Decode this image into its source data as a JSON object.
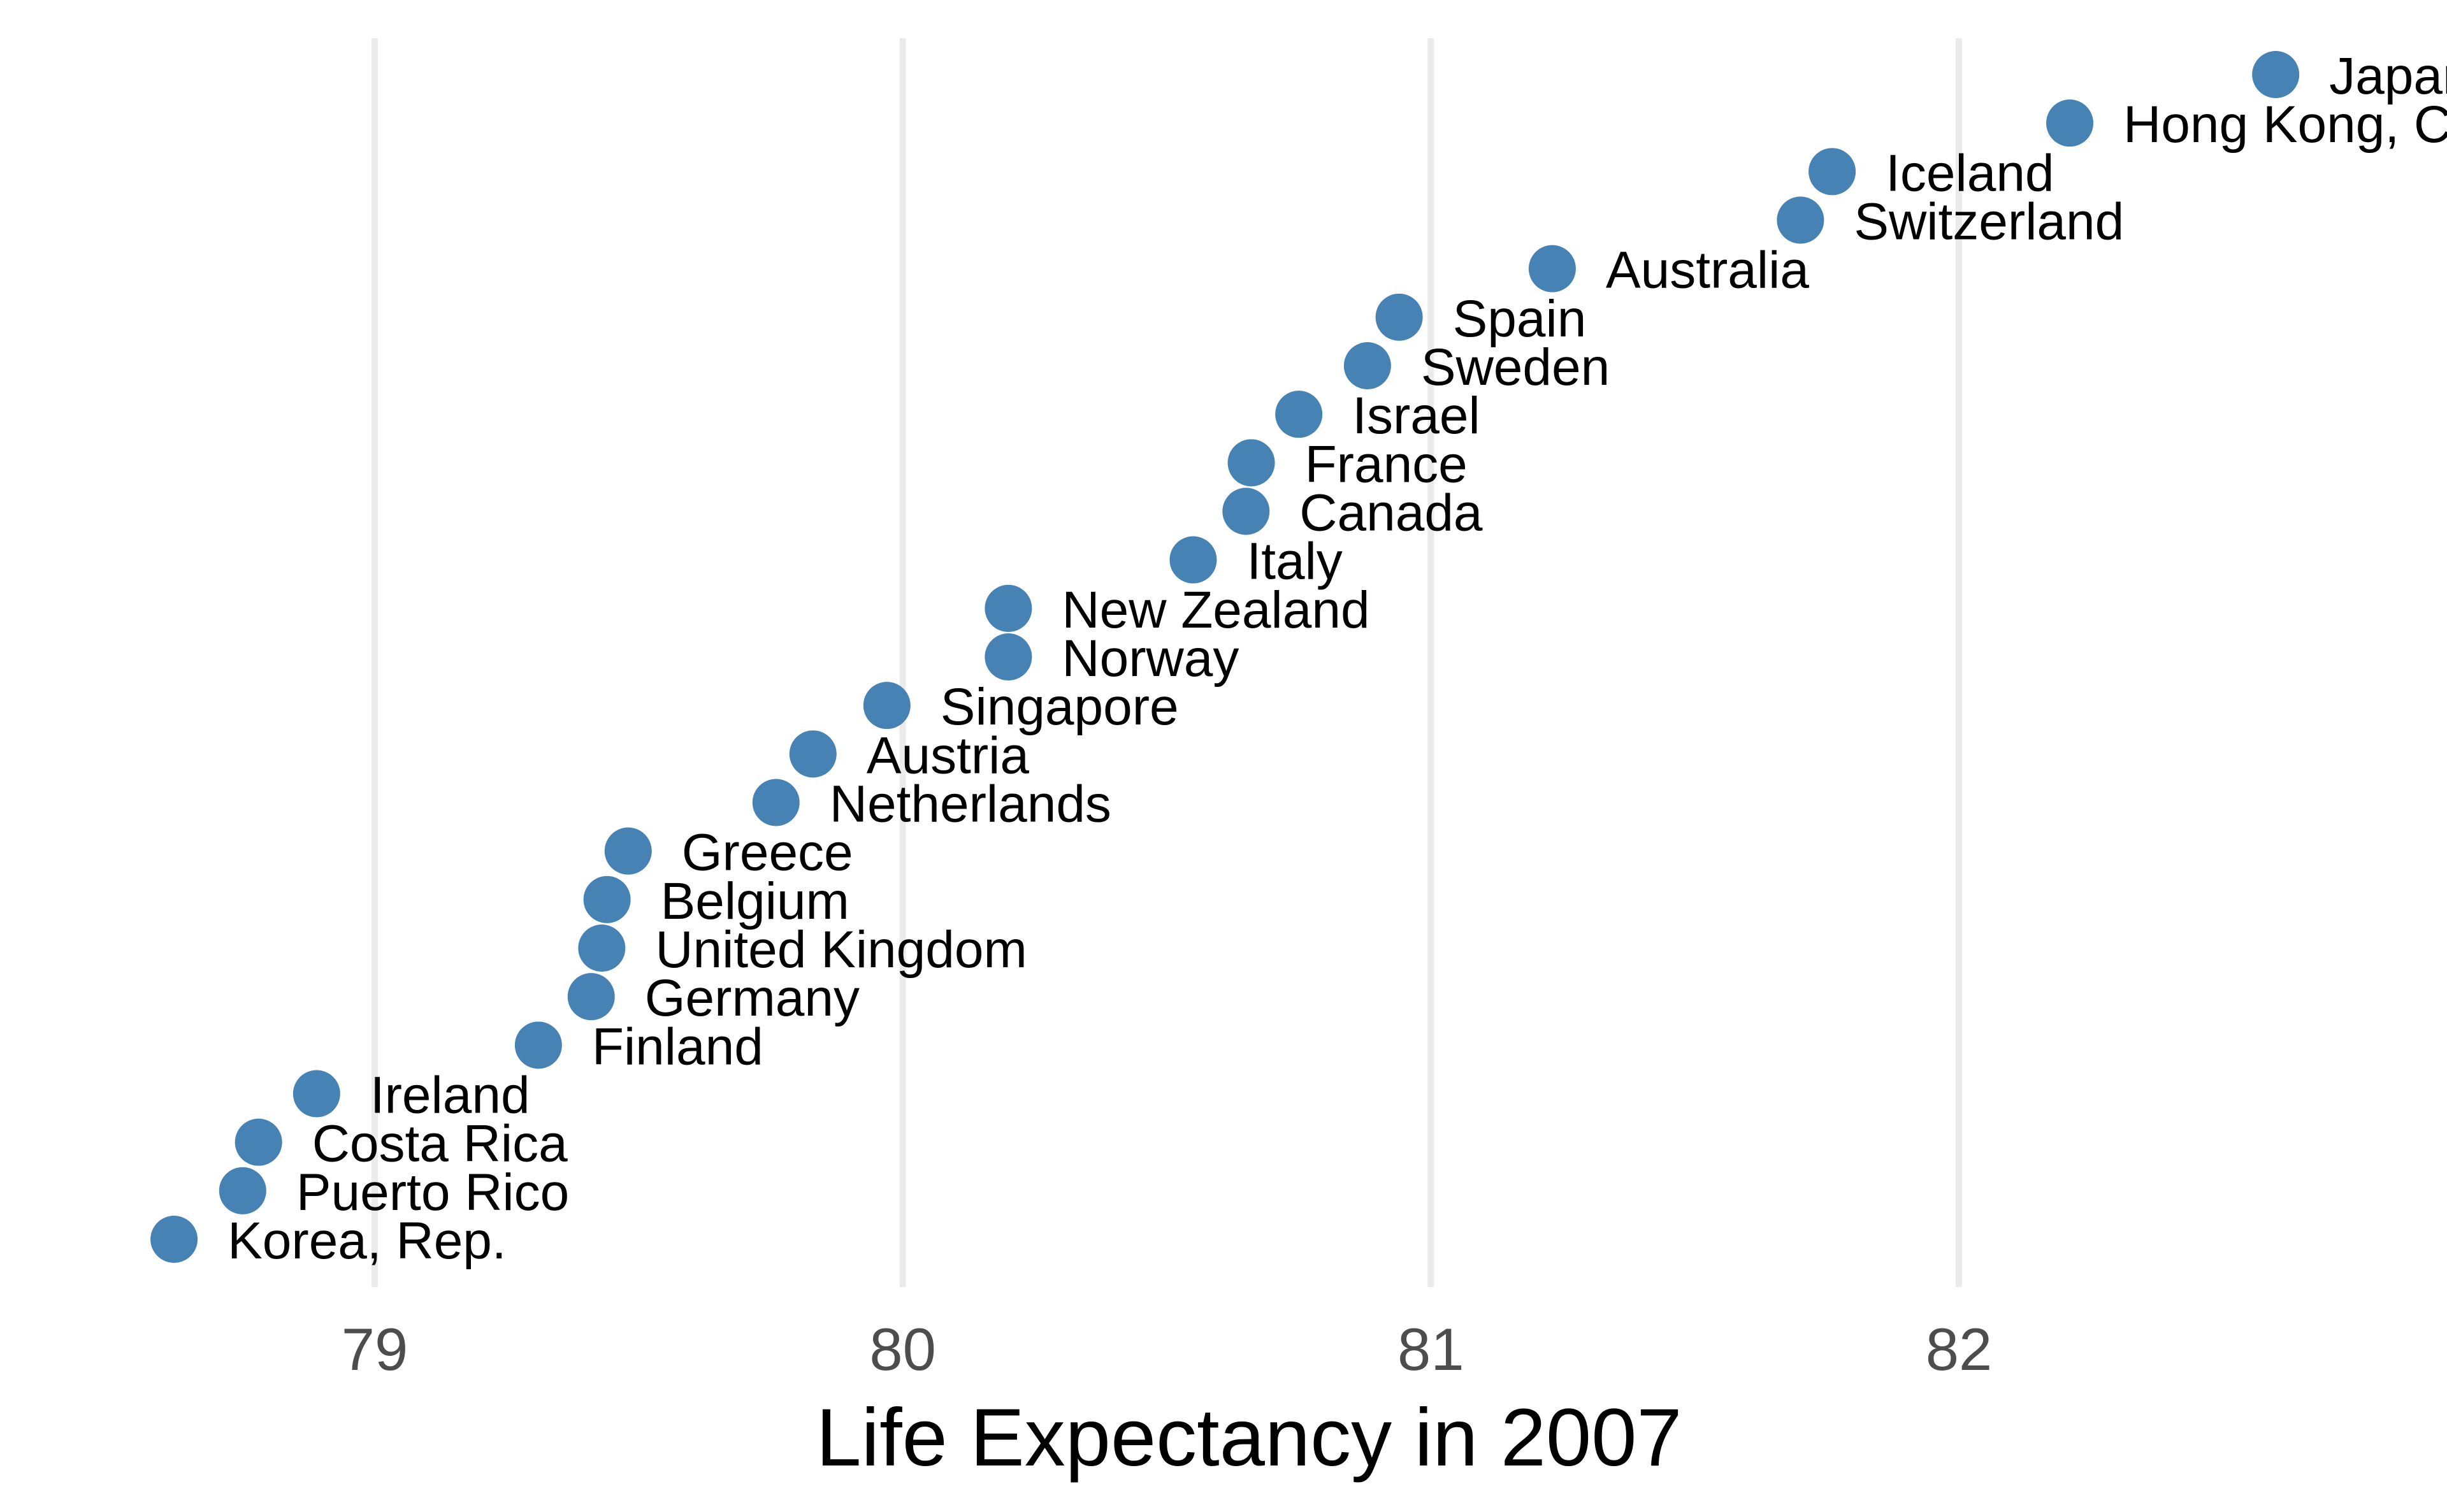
{
  "chart_data": {
    "type": "scatter",
    "title": "",
    "xlabel": "Life Expectancy in 2007",
    "ylabel": "",
    "xlim": [
      78.6,
      82.9
    ],
    "xticks": [
      79,
      80,
      81,
      82
    ],
    "xtick_labels": [
      "79",
      "80",
      "81",
      "82"
    ],
    "grid": "vertical major gridlines",
    "legend": "none",
    "point_color": "#4682b4",
    "label_placement": "right of each point",
    "series": [
      {
        "points": [
          {
            "label": "Korea, Rep.",
            "x": 78.62
          },
          {
            "label": "Puerto Rico",
            "x": 78.75
          },
          {
            "label": "Costa Rica",
            "x": 78.78
          },
          {
            "label": "Ireland",
            "x": 78.89
          },
          {
            "label": "Finland",
            "x": 79.31
          },
          {
            "label": "Germany",
            "x": 79.41
          },
          {
            "label": "United Kingdom",
            "x": 79.43
          },
          {
            "label": "Belgium",
            "x": 79.44
          },
          {
            "label": "Greece",
            "x": 79.48
          },
          {
            "label": "Netherlands",
            "x": 79.76
          },
          {
            "label": "Austria",
            "x": 79.83
          },
          {
            "label": "Singapore",
            "x": 79.97
          },
          {
            "label": "Norway",
            "x": 80.2
          },
          {
            "label": "New Zealand",
            "x": 80.2
          },
          {
            "label": "Italy",
            "x": 80.55
          },
          {
            "label": "Canada",
            "x": 80.65
          },
          {
            "label": "France",
            "x": 80.66
          },
          {
            "label": "Israel",
            "x": 80.75
          },
          {
            "label": "Sweden",
            "x": 80.88
          },
          {
            "label": "Spain",
            "x": 80.94
          },
          {
            "label": "Australia",
            "x": 81.23
          },
          {
            "label": "Switzerland",
            "x": 81.7
          },
          {
            "label": "Iceland",
            "x": 81.76
          },
          {
            "label": "Hong Kong, China",
            "x": 82.21
          },
          {
            "label": "Japan",
            "x": 82.6
          }
        ]
      }
    ]
  }
}
